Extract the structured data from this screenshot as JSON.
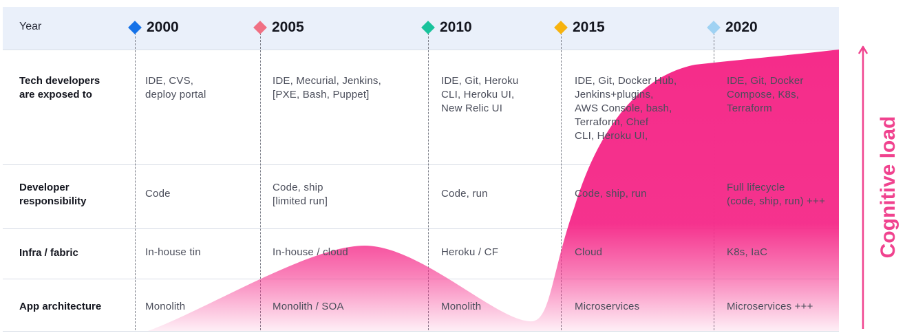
{
  "header": {
    "year_label": "Year"
  },
  "years": [
    {
      "label": "2000",
      "color": "#1572e8"
    },
    {
      "label": "2005",
      "color": "#f07083"
    },
    {
      "label": "2010",
      "color": "#19c39c"
    },
    {
      "label": "2015",
      "color": "#f7b30e"
    },
    {
      "label": "2020",
      "color": "#9fd2f3"
    }
  ],
  "rows": [
    {
      "label": "Tech developers\nare exposed to",
      "cells": [
        "IDE, CVS,\ndeploy portal",
        "IDE, Mecurial, Jenkins,\n[PXE, Bash, Puppet]",
        "IDE, Git, Heroku\nCLI, Heroku UI,\nNew Relic UI",
        "IDE, Git, Docker Hub,\nJenkins+plugins,\nAWS Console, bash,\nTerraform, Chef\nCLI, Heroku UI,",
        "IDE, Git, Docker\nCompose, K8s,\nTerraform"
      ]
    },
    {
      "label": "Developer\nresponsibility",
      "cells": [
        "Code",
        "Code, ship\n[limited run]",
        "Code, run",
        "Code, ship, run",
        "Full lifecycle\n(code, ship, run) +++"
      ]
    },
    {
      "label": "Infra / fabric",
      "cells": [
        "In-house tin",
        "In-house / cloud",
        "Heroku / CF",
        "Cloud",
        "K8s, IaC"
      ]
    },
    {
      "label": "App architecture",
      "cells": [
        "Monolith",
        "Monolith / SOA",
        "Monolith",
        "Microservices",
        "Microservices +++"
      ]
    }
  ],
  "axis": {
    "label": "Cognitive load",
    "color": "#f0428e"
  },
  "curve": {
    "color": "#f52c8a"
  }
}
